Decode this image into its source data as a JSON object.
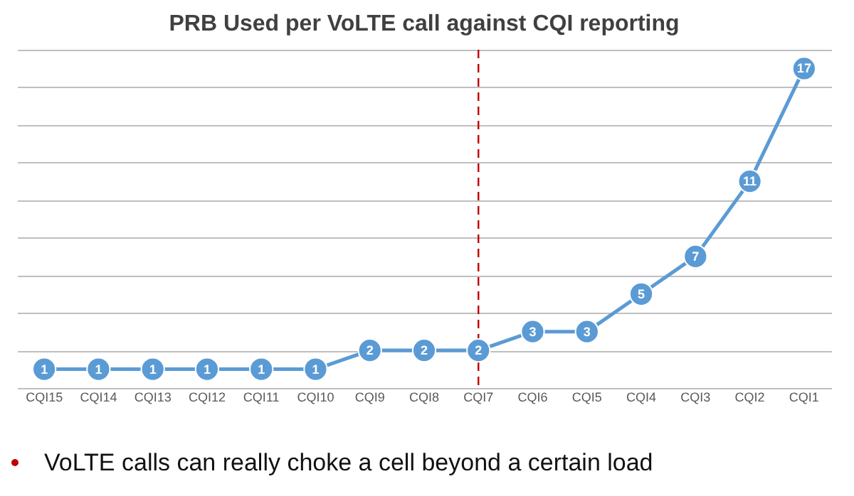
{
  "chart_data": {
    "type": "line",
    "title": "PRB Used per VoLTE call against CQI reporting",
    "categories": [
      "CQI15",
      "CQI14",
      "CQI13",
      "CQI12",
      "CQI11",
      "CQI10",
      "CQI9",
      "CQI8",
      "CQI7",
      "CQI6",
      "CQI5",
      "CQI4",
      "CQI3",
      "CQI2",
      "CQI1"
    ],
    "series": [
      {
        "color": "#5b9bd5",
        "values": [
          1,
          1,
          1,
          1,
          1,
          1,
          2,
          2,
          2,
          3,
          3,
          5,
          7,
          11,
          17
        ]
      }
    ],
    "ylim": [
      0,
      18
    ],
    "tick_labels": "x",
    "grid": "y",
    "marker": "circle",
    "line_style": "solid",
    "data_labels": true,
    "ref_lines": [
      {
        "axis": "x",
        "value": "CQI7",
        "color": "#c00000",
        "line_style": "dashed"
      }
    ],
    "annotations": [
      "VoLTE calls can really choke a cell beyond a certain load"
    ]
  }
}
